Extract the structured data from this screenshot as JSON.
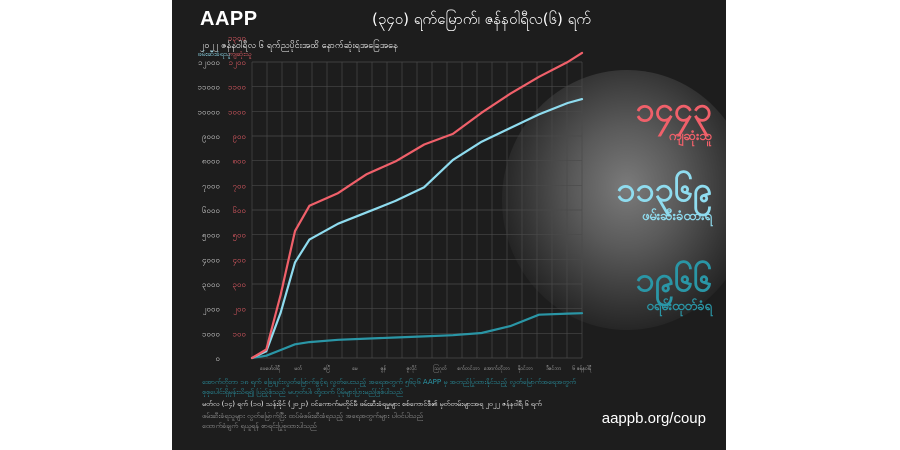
{
  "poster": {
    "brand": "AAPP",
    "headline": "(၃၄၀) ရက်မြောက်၊ ဇန်နဝါရီလ(၆) ရက်",
    "subline": "၂၀၂၂ ဇန်နဝါရီလ ၆ ရက်ညပိုင်းအထိ နောက်ဆုံးရအခြေအနေ",
    "url": "aappb.org/coup",
    "footer_lines": [
      "အောက်တိုဘာ ၁၈ ရက် ခြေချင်းလွတ်မြောက်ခွင့်ရ လွတ်ပေးသည့် အရေအတွက် ၅၆၃၆ AAPP မှ အတည်ပြုထားနိုင်သည့် လွတ်မြောက်အရေအတွက်",
      "စုစုပေါင်းရှိမှန်းသိရ၍ ပြည့်စုံသည် မဟုတ်ပါ၊ ထို့ထက် ပိုမိုများပြားမည်ဖြစ်ပါသည်",
      "မတ်လ (၁၄) ရက် (၁၀) သန်းခိုင် (၂၀၂၁) ဝင်ကောက်မတိုင်မီ ဖမ်းဆီးခံရမှုများ စစ်ကောင်စီ၏ မှတ်တမ်းများအရ ၂၀၂၂ ဇန်နဝါရီ ၆ ရက်",
      "ဖမ်းဆီးခံရသူများ လွတ်မြောက်ပြီး ထပ်မံဖမ်းဆီးခံရသည့် အရေအတွက်များ ပါဝင်ပါသည်",
      "ထောက်ခံချက် ရယူရန် စာရင်းပြုစုထားပါသည်"
    ]
  },
  "colors": {
    "killed": "#f0606a",
    "detained": "#8fdcef",
    "warrants": "#2a96a6",
    "background": "#1d1d1d"
  },
  "stats": [
    {
      "number": "၁၄၄၃",
      "label": "ကျဆုံးသူ",
      "color": "#f0606a"
    },
    {
      "number": "၁၁၃၆၉",
      "label": "ဖမ်းဆီးခံထားရ",
      "color": "#8fdcef"
    },
    {
      "number": "၁၉၆၆",
      "label": "ဝရမ်းထုတ်ခံရ",
      "color": "#2a96a6"
    }
  ],
  "chart_data": {
    "type": "line",
    "title": "",
    "xlabel": "",
    "ylabel": "",
    "axis_headers": {
      "left": "ဖမ်းဆီးခံရသူ",
      "right": "ကျဆုံးသူ"
    },
    "y_ticks_left": [
      "၀",
      "၁၀၀၀",
      "၂၀၀၀",
      "၃၀၀၀",
      "၄၀၀၀",
      "၅၀၀၀",
      "၆၀၀၀",
      "၇၀၀၀",
      "၈၀၀၀",
      "၉၀၀၀",
      "၁၀၀၀၀",
      "၁၁၀၀၀",
      "၁၂၀၀၀"
    ],
    "y_ticks_right": [
      "၁၀၀",
      "၂၀၀",
      "၃၀၀",
      "၄၀၀",
      "၅၀၀",
      "၆၀၀",
      "၇၀၀",
      "၈၀၀",
      "၉၀၀",
      "၁၀၀၀",
      "၁၁၀၀",
      "၁၂၀၀",
      "၁၃၀၀"
    ],
    "x_ticks": [
      "ဖေဖော်ဝါရီ",
      "မတ်",
      "ဧပြီ",
      "မေ",
      "ဇွန်",
      "ဇူလိုင်",
      "ဩဂုတ်",
      "စက်တင်ဘာ",
      "အောက်တိုဘာ",
      "နိုဝင်ဘာ",
      "ဒီဇင်ဘာ",
      "၆ ဇန်နဝါရီ"
    ],
    "x": [
      0,
      0.5,
      1,
      1.5,
      2,
      3,
      4,
      5,
      6,
      7,
      8,
      9,
      10,
      11,
      11.5
    ],
    "ylim_left": [
      0,
      13000
    ],
    "ylim_right": [
      0,
      1400
    ],
    "series": [
      {
        "name": "ကျဆုံးသူ",
        "axis": "right",
        "color": "#f0606a",
        "values": [
          0,
          40,
          300,
          600,
          720,
          780,
          870,
          930,
          1010,
          1060,
          1160,
          1250,
          1330,
          1400,
          1443
        ]
      },
      {
        "name": "ဖမ်းဆီးခံထားရ",
        "axis": "left",
        "color": "#8fdcef",
        "values": [
          0,
          300,
          2000,
          4200,
          5200,
          5900,
          6400,
          6900,
          7500,
          8700,
          9500,
          10100,
          10700,
          11200,
          11369
        ]
      },
      {
        "name": "ဝရမ်းထုတ်ခံရ",
        "axis": "left",
        "color": "#2a96a6",
        "values": [
          0,
          100,
          350,
          600,
          700,
          800,
          850,
          900,
          950,
          1000,
          1100,
          1400,
          1900,
          1950,
          1966
        ]
      }
    ],
    "grid": true
  }
}
